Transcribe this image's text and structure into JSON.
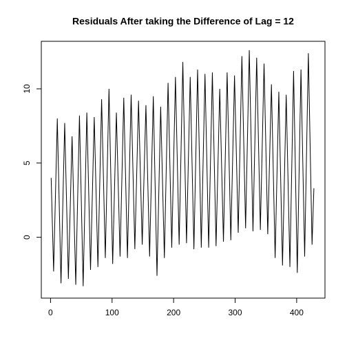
{
  "chart_data": {
    "type": "line",
    "title": "Residuals After taking the Difference of Lag = 12",
    "x": [
      1,
      5,
      11,
      17,
      23,
      29,
      35,
      41,
      47,
      53,
      59,
      65,
      71,
      77,
      83,
      89,
      95,
      101,
      107,
      113,
      119,
      125,
      131,
      137,
      143,
      149,
      155,
      161,
      167,
      173,
      179,
      185,
      191,
      197,
      203,
      209,
      215,
      221,
      227,
      233,
      239,
      245,
      251,
      257,
      263,
      269,
      275,
      281,
      287,
      293,
      299,
      305,
      311,
      317,
      323,
      329,
      335,
      341,
      347,
      353,
      359,
      365,
      371,
      377,
      383,
      389,
      395,
      401,
      407,
      413,
      419,
      425,
      428
    ],
    "values": [
      4.0,
      -2.3,
      8.0,
      -3.1,
      7.7,
      -2.8,
      6.8,
      -3.2,
      8.2,
      -3.3,
      8.4,
      -2.2,
      8.1,
      -2.0,
      9.3,
      -1.4,
      10.0,
      -1.8,
      8.4,
      -1.3,
      9.4,
      -1.4,
      9.6,
      -0.8,
      9.2,
      -0.5,
      8.9,
      -1.3,
      9.5,
      -2.6,
      8.8,
      -1.4,
      10.4,
      -0.7,
      10.8,
      -0.5,
      11.8,
      -0.4,
      10.8,
      -0.8,
      11.3,
      -0.7,
      11.0,
      -0.7,
      11.1,
      -0.6,
      10.0,
      -0.3,
      11.1,
      -0.2,
      10.9,
      0.3,
      12.2,
      0.6,
      12.6,
      0.4,
      12.1,
      0.5,
      11.7,
      0.2,
      10.3,
      -1.4,
      9.8,
      -1.9,
      9.6,
      -2.0,
      11.2,
      -2.4,
      11.3,
      -1.3,
      12.4,
      -0.5,
      3.3
    ],
    "color": "#000000",
    "xlim": [
      -15,
      446
    ],
    "xticks": [
      0,
      100,
      200,
      300,
      400
    ],
    "ylim": [
      -4.1,
      13.2
    ],
    "yticks": [
      0,
      5,
      10
    ],
    "grid": false
  }
}
